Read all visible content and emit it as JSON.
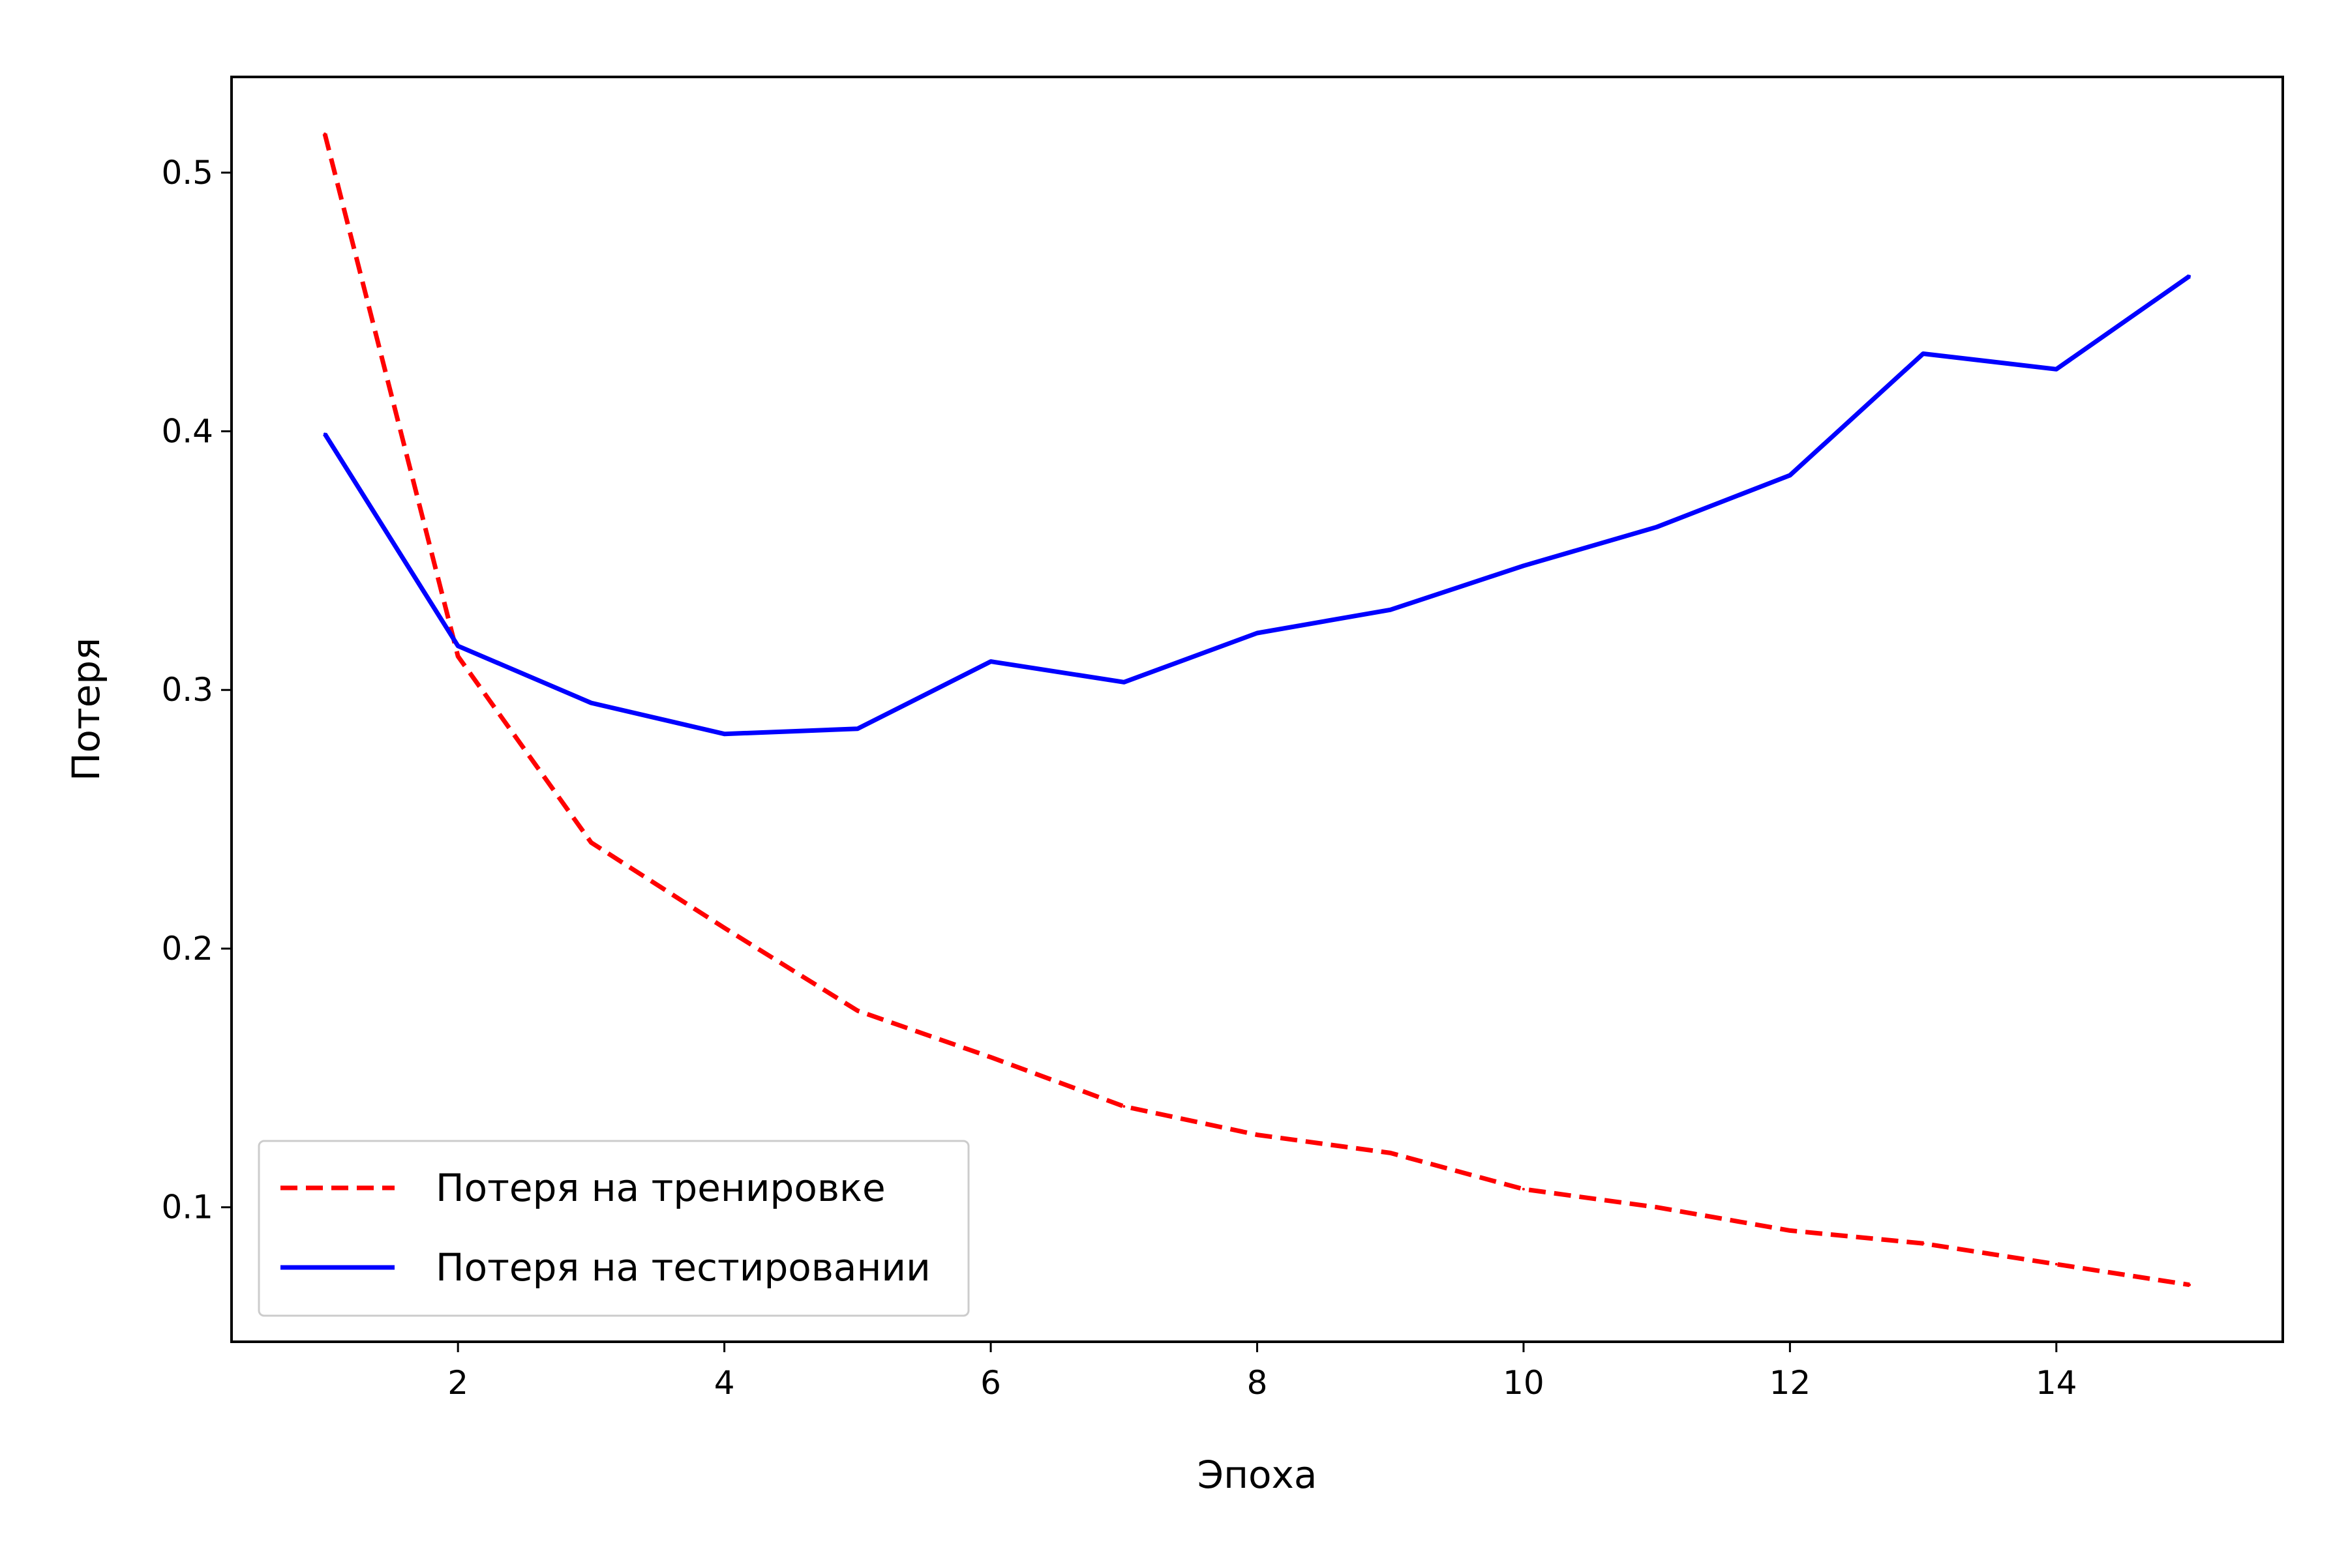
{
  "chart_data": {
    "type": "line",
    "title": "",
    "xlabel": "Эпоха",
    "ylabel": "Потеря",
    "xlim": [
      0.3,
      15.7
    ],
    "ylim": [
      0.048,
      0.537
    ],
    "xticks": [
      2,
      4,
      6,
      8,
      10,
      12,
      14
    ],
    "yticks": [
      0.1,
      0.2,
      0.3,
      0.4,
      0.5
    ],
    "xtick_labels": [
      "2",
      "4",
      "6",
      "8",
      "10",
      "12",
      "14"
    ],
    "ytick_labels": [
      "0.1",
      "0.2",
      "0.3",
      "0.4",
      "0.5"
    ],
    "grid": false,
    "legend_position": "lower-left",
    "x": [
      1,
      2,
      3,
      4,
      5,
      6,
      7,
      8,
      9,
      10,
      11,
      12,
      13,
      14,
      15
    ],
    "series": [
      {
        "name": "Потеря на тренировке",
        "color": "#ff0000",
        "line_style": "dashed",
        "values": [
          0.515,
          0.313,
          0.241,
          0.208,
          0.176,
          0.158,
          0.139,
          0.128,
          0.121,
          0.107,
          0.1,
          0.091,
          0.086,
          0.078,
          0.07
        ]
      },
      {
        "name": "Потеря на тестировании",
        "color": "#0000ff",
        "line_style": "solid",
        "values": [
          0.399,
          0.317,
          0.295,
          0.283,
          0.285,
          0.311,
          0.303,
          0.322,
          0.331,
          0.348,
          0.363,
          0.383,
          0.43,
          0.424,
          0.46
        ]
      }
    ]
  }
}
